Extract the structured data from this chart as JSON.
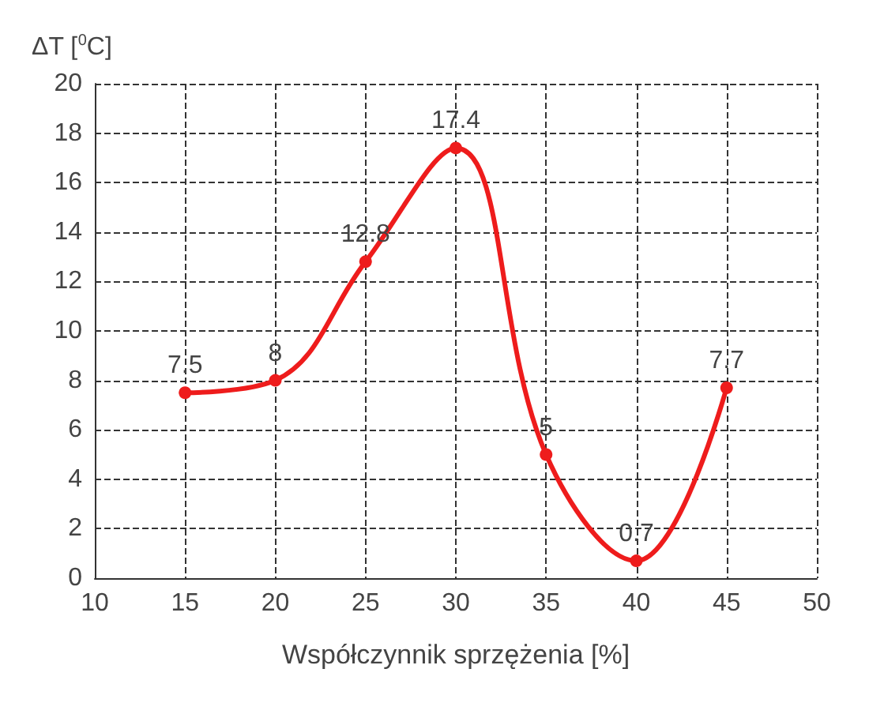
{
  "chart_data": {
    "type": "line",
    "ylabel": "ΔT [$^{0}$C]",
    "xlabel": "Współczynnik sprzężenia [%]",
    "x": [
      15,
      20,
      25,
      30,
      35,
      40,
      45
    ],
    "series": [
      {
        "color": "#ee1c1c",
        "values": [
          7.5,
          8,
          12.8,
          17.4,
          5,
          0.7,
          7.7
        ]
      }
    ],
    "xlim": [
      10,
      50
    ],
    "xticks": [
      10,
      15,
      20,
      25,
      30,
      35,
      40,
      45,
      50
    ],
    "ylim": [
      0,
      20
    ],
    "yticks": [
      0,
      2,
      4,
      6,
      8,
      10,
      12,
      14,
      16,
      18,
      20
    ],
    "grid": true,
    "marker": "circle",
    "line_style": "solid",
    "data_labels": true
  }
}
